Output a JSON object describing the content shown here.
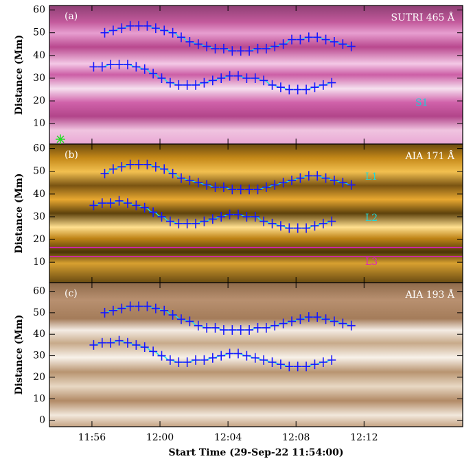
{
  "chart_data": [
    {
      "type": "line",
      "label": "(a)",
      "instrument": "SUTRI 465 Å",
      "ylabel": "Distance (Mm)",
      "notes": [
        {
          "text": "S1",
          "color": "#22c8d8"
        }
      ],
      "xlim": [
        -0.5,
        23.8
      ],
      "ylim": [
        1,
        62
      ],
      "yticks": [
        10,
        20,
        30,
        40,
        50,
        60
      ],
      "fit_color": "#19e0e8",
      "series": [
        {
          "color": "#1616ff",
          "x": [
            2.75,
            3.25,
            3.75,
            4.25,
            4.75,
            5.25,
            5.75,
            6.25,
            6.75,
            7.25,
            7.75,
            8.25,
            8.75,
            9.25,
            9.75,
            10.25,
            10.75,
            11.25,
            11.75,
            12.25,
            12.75,
            13.25,
            13.75,
            14.25,
            14.75,
            15.25,
            15.75,
            16.25,
            16.75,
            17.25
          ],
          "values": [
            50,
            51,
            52,
            53,
            53,
            53,
            52,
            51,
            50,
            48,
            46,
            45,
            44,
            43,
            43,
            42,
            42,
            42,
            43,
            43,
            44,
            45,
            47,
            47,
            48,
            48,
            47,
            46,
            45,
            44
          ]
        },
        {
          "color": "#1616ff",
          "x": [
            2.1,
            2.6,
            3.1,
            3.6,
            4.1,
            4.6,
            5.1,
            5.6,
            6.1,
            6.6,
            7.1,
            7.6,
            8.1,
            8.6,
            9.1,
            9.6,
            10.1,
            10.6,
            11.1,
            11.6,
            12.1,
            12.6,
            13.1,
            13.6,
            14.1,
            14.6,
            15.1,
            15.6,
            16.1
          ],
          "values": [
            35,
            35,
            36,
            36,
            36,
            35,
            34,
            32,
            30,
            28,
            27,
            27,
            27,
            28,
            29,
            30,
            31,
            31,
            30,
            30,
            29,
            27,
            26,
            25,
            25,
            25,
            26,
            27,
            28
          ]
        }
      ]
    },
    {
      "type": "line",
      "label": "(b)",
      "instrument": "AIA 171 Å",
      "ylabel": "Distance (Mm)",
      "notes": [
        {
          "text": "L1",
          "color": "#22d8d8"
        },
        {
          "text": "L2",
          "color": "#22d8d8"
        },
        {
          "text": "L3",
          "color": "#e020c0"
        }
      ],
      "hlines": [
        16.5,
        12.5
      ],
      "hline_color": "#e020c0",
      "xlim": [
        -0.5,
        23.8
      ],
      "ylim": [
        1,
        62
      ],
      "yticks": [
        10,
        20,
        30,
        40,
        50,
        60
      ],
      "fit_color": "#19e0e8",
      "series": [
        {
          "color": "#1616ff",
          "x": [
            2.75,
            3.25,
            3.75,
            4.25,
            4.75,
            5.25,
            5.75,
            6.25,
            6.75,
            7.25,
            7.75,
            8.25,
            8.75,
            9.25,
            9.75,
            10.25,
            10.75,
            11.25,
            11.75,
            12.25,
            12.75,
            13.25,
            13.75,
            14.25,
            14.75,
            15.25,
            15.75,
            16.25,
            16.75,
            17.25
          ],
          "values": [
            49,
            51,
            52,
            53,
            53,
            53,
            52,
            51,
            49,
            47,
            46,
            45,
            44,
            43,
            43,
            42,
            42,
            42,
            42,
            43,
            44,
            45,
            46,
            47,
            48,
            48,
            47,
            46,
            45,
            44
          ]
        },
        {
          "color": "#1616ff",
          "x": [
            2.1,
            2.6,
            3.1,
            3.6,
            4.1,
            4.6,
            5.1,
            5.6,
            6.1,
            6.6,
            7.1,
            7.6,
            8.1,
            8.6,
            9.1,
            9.6,
            10.1,
            10.6,
            11.1,
            11.6,
            12.1,
            12.6,
            13.1,
            13.6,
            14.1,
            14.6,
            15.1,
            15.6,
            16.1
          ],
          "values": [
            35,
            36,
            36,
            37,
            36,
            35,
            34,
            32,
            30,
            28,
            27,
            27,
            27,
            28,
            29,
            30,
            31,
            31,
            30,
            30,
            28,
            27,
            26,
            25,
            25,
            25,
            26,
            27,
            28
          ]
        }
      ]
    },
    {
      "type": "line",
      "label": "(c)",
      "instrument": "AIA 193 Å",
      "ylabel": "Distance (Mm)",
      "notes": [],
      "xlabel": "Start Time (29-Sep-22 11:54:00)",
      "xlim": [
        -0.5,
        23.8
      ],
      "ylim": [
        -3,
        64
      ],
      "yticks": [
        0,
        10,
        20,
        30,
        40,
        50,
        60
      ],
      "fit_color": "#19e0e8",
      "xticks": [
        {
          "value": 2,
          "label": "11:56"
        },
        {
          "value": 6,
          "label": "12:00"
        },
        {
          "value": 10,
          "label": "12:04"
        },
        {
          "value": 14,
          "label": "12:08"
        },
        {
          "value": 18,
          "label": "12:12"
        }
      ],
      "series": [
        {
          "color": "#1616ff",
          "x": [
            2.75,
            3.25,
            3.75,
            4.25,
            4.75,
            5.25,
            5.75,
            6.25,
            6.75,
            7.25,
            7.75,
            8.25,
            8.75,
            9.25,
            9.75,
            10.25,
            10.75,
            11.25,
            11.75,
            12.25,
            12.75,
            13.25,
            13.75,
            14.25,
            14.75,
            15.25,
            15.75,
            16.25,
            16.75,
            17.25
          ],
          "values": [
            50,
            51,
            52,
            53,
            53,
            53,
            52,
            51,
            49,
            47,
            46,
            44,
            43,
            43,
            42,
            42,
            42,
            42,
            43,
            43,
            44,
            45,
            46,
            47,
            48,
            48,
            47,
            46,
            45,
            44
          ]
        },
        {
          "color": "#1616ff",
          "x": [
            2.1,
            2.6,
            3.1,
            3.6,
            4.1,
            4.6,
            5.1,
            5.6,
            6.1,
            6.6,
            7.1,
            7.6,
            8.1,
            8.6,
            9.1,
            9.6,
            10.1,
            10.6,
            11.1,
            11.6,
            12.1,
            12.6,
            13.1,
            13.6,
            14.1,
            14.6,
            15.1,
            15.6,
            16.1
          ],
          "values": [
            35,
            36,
            36,
            37,
            36,
            35,
            34,
            32,
            30,
            28,
            27,
            27,
            28,
            28,
            29,
            30,
            31,
            31,
            30,
            29,
            28,
            27,
            26,
            25,
            25,
            25,
            26,
            27,
            28
          ]
        }
      ]
    }
  ]
}
